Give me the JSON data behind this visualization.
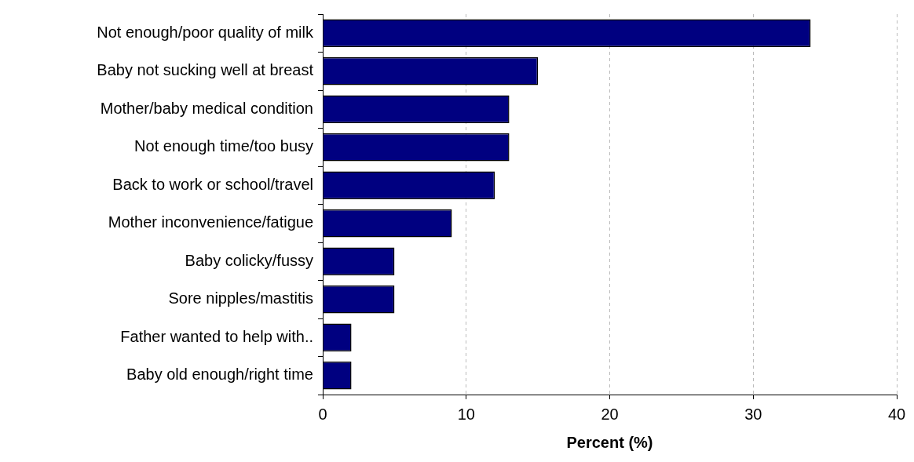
{
  "chart_data": {
    "type": "bar",
    "orientation": "horizontal",
    "xlabel": "Percent (%)",
    "categories": [
      "Not enough/poor quality of milk",
      "Baby not sucking well at breast",
      "Mother/baby medical condition",
      "Not enough time/too busy",
      "Back to work or school/travel",
      "Mother inconvenience/fatigue",
      "Baby colicky/fussy",
      "Sore nipples/mastitis",
      "Father wanted to help with..",
      "Baby old enough/right time"
    ],
    "values": [
      34,
      15,
      13,
      13,
      12,
      9,
      5,
      5,
      2,
      2
    ],
    "color": "#000080",
    "xlim": [
      0,
      40
    ],
    "xticks": [
      0,
      10,
      20,
      30,
      40
    ],
    "grid": "x",
    "legend": false
  }
}
